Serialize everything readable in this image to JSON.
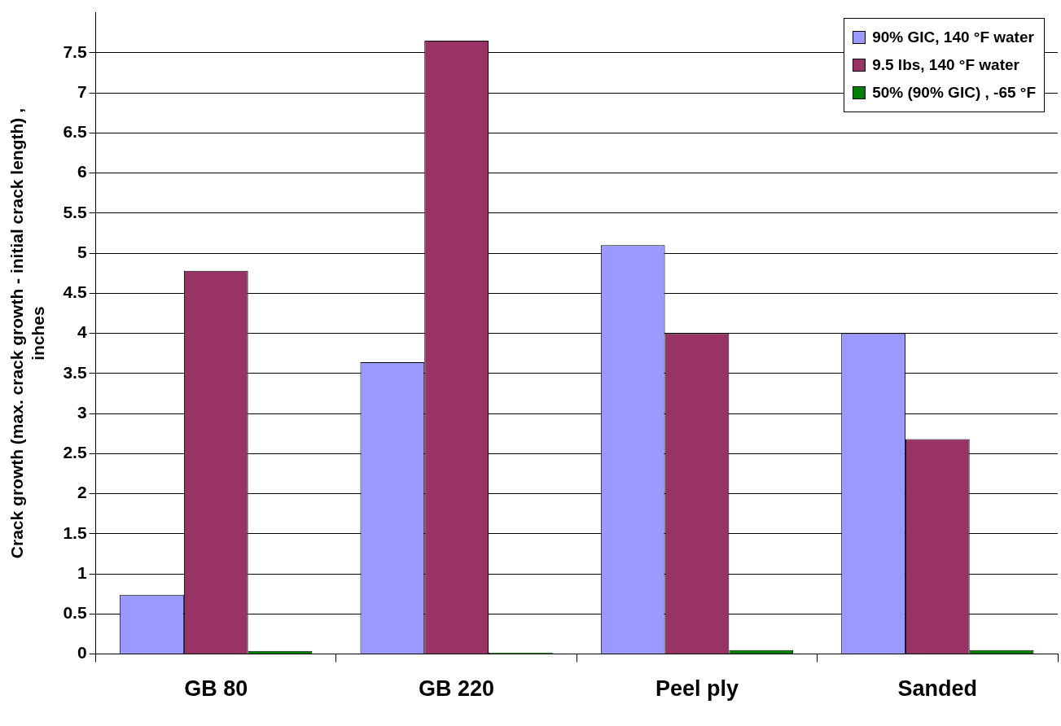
{
  "chart_data": {
    "type": "bar",
    "ylabel": "Crack growth (max. crack growth - initial crack length) , inches",
    "categories": [
      "GB 80",
      "GB 220",
      "Peel ply",
      "Sanded"
    ],
    "series": [
      {
        "name": "90% GIC, 140 °F water",
        "color": "#9999ff",
        "values": [
          0.74,
          3.64,
          5.1,
          4.0
        ]
      },
      {
        "name": "9.5 lbs, 140 °F water",
        "color": "#993366",
        "values": [
          4.78,
          7.65,
          4.0,
          2.68
        ]
      },
      {
        "name": "50% (90% GIC) , -65 °F",
        "color": "#008000",
        "values": [
          0.04,
          0.02,
          0.05,
          0.05
        ]
      }
    ],
    "ylim": [
      0,
      8
    ],
    "yticks": [
      0,
      0.5,
      1,
      1.5,
      2,
      2.5,
      3,
      3.5,
      4,
      4.5,
      5,
      5.5,
      6,
      6.5,
      7,
      7.5
    ],
    "grid": "y",
    "legend": "top right"
  }
}
